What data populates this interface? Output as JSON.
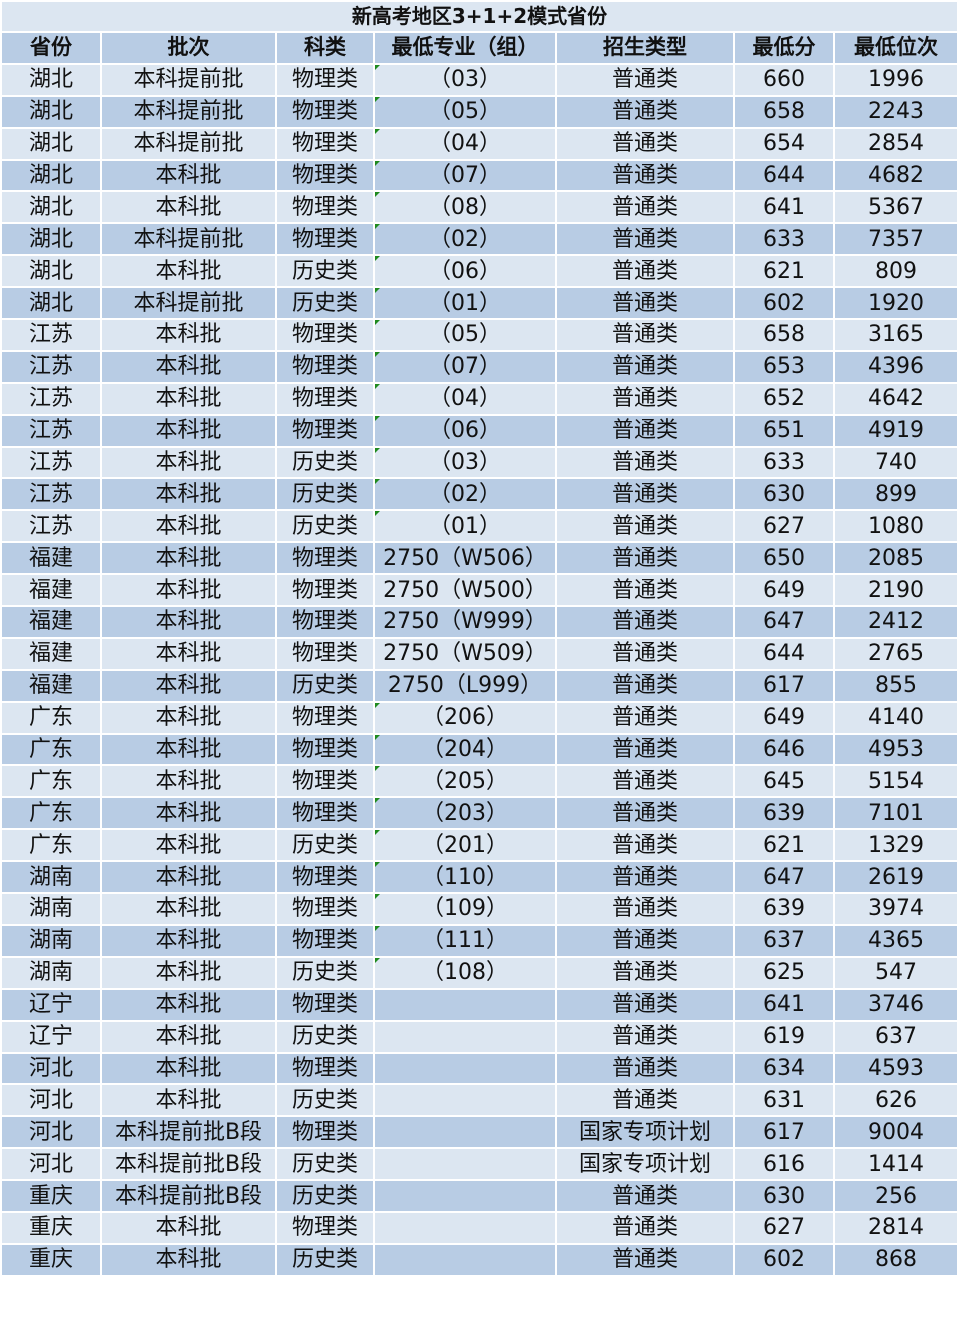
{
  "title": "新高考地区3+1+2模式省份",
  "headers": [
    "省份",
    "批次",
    "科类",
    "最低专业（组）",
    "招生类型",
    "最低分",
    "最低位次"
  ],
  "rows": [
    [
      "湖北",
      "本科提前批",
      "物理类",
      "（03）",
      "普通类",
      "660",
      "1996"
    ],
    [
      "湖北",
      "本科提前批",
      "物理类",
      "（05）",
      "普通类",
      "658",
      "2243"
    ],
    [
      "湖北",
      "本科提前批",
      "物理类",
      "（04）",
      "普通类",
      "654",
      "2854"
    ],
    [
      "湖北",
      "本科批",
      "物理类",
      "（07）",
      "普通类",
      "644",
      "4682"
    ],
    [
      "湖北",
      "本科批",
      "物理类",
      "（08）",
      "普通类",
      "641",
      "5367"
    ],
    [
      "湖北",
      "本科提前批",
      "物理类",
      "（02）",
      "普通类",
      "633",
      "7357"
    ],
    [
      "湖北",
      "本科批",
      "历史类",
      "（06）",
      "普通类",
      "621",
      "809"
    ],
    [
      "湖北",
      "本科提前批",
      "历史类",
      "（01）",
      "普通类",
      "602",
      "1920"
    ],
    [
      "江苏",
      "本科批",
      "物理类",
      "（05）",
      "普通类",
      "658",
      "3165"
    ],
    [
      "江苏",
      "本科批",
      "物理类",
      "（07）",
      "普通类",
      "653",
      "4396"
    ],
    [
      "江苏",
      "本科批",
      "物理类",
      "（04）",
      "普通类",
      "652",
      "4642"
    ],
    [
      "江苏",
      "本科批",
      "物理类",
      "（06）",
      "普通类",
      "651",
      "4919"
    ],
    [
      "江苏",
      "本科批",
      "历史类",
      "（03）",
      "普通类",
      "633",
      "740"
    ],
    [
      "江苏",
      "本科批",
      "历史类",
      "（02）",
      "普通类",
      "630",
      "899"
    ],
    [
      "江苏",
      "本科批",
      "历史类",
      "（01）",
      "普通类",
      "627",
      "1080"
    ],
    [
      "福建",
      "本科批",
      "物理类",
      "2750（W506）",
      "普通类",
      "650",
      "2085"
    ],
    [
      "福建",
      "本科批",
      "物理类",
      "2750（W500）",
      "普通类",
      "649",
      "2190"
    ],
    [
      "福建",
      "本科批",
      "物理类",
      "2750（W999）",
      "普通类",
      "647",
      "2412"
    ],
    [
      "福建",
      "本科批",
      "物理类",
      "2750（W509）",
      "普通类",
      "644",
      "2765"
    ],
    [
      "福建",
      "本科批",
      "历史类",
      "2750（L999）",
      "普通类",
      "617",
      "855"
    ],
    [
      "广东",
      "本科批",
      "物理类",
      "（206）",
      "普通类",
      "649",
      "4140"
    ],
    [
      "广东",
      "本科批",
      "物理类",
      "（204）",
      "普通类",
      "646",
      "4953"
    ],
    [
      "广东",
      "本科批",
      "物理类",
      "（205）",
      "普通类",
      "645",
      "5154"
    ],
    [
      "广东",
      "本科批",
      "物理类",
      "（203）",
      "普通类",
      "639",
      "7101"
    ],
    [
      "广东",
      "本科批",
      "历史类",
      "（201）",
      "普通类",
      "621",
      "1329"
    ],
    [
      "湖南",
      "本科批",
      "物理类",
      "（110）",
      "普通类",
      "647",
      "2619"
    ],
    [
      "湖南",
      "本科批",
      "物理类",
      "（109）",
      "普通类",
      "639",
      "3974"
    ],
    [
      "湖南",
      "本科批",
      "物理类",
      "（111）",
      "普通类",
      "637",
      "4365"
    ],
    [
      "湖南",
      "本科批",
      "历史类",
      "（108）",
      "普通类",
      "625",
      "547"
    ],
    [
      "辽宁",
      "本科批",
      "物理类",
      "",
      "普通类",
      "641",
      "3746"
    ],
    [
      "辽宁",
      "本科批",
      "历史类",
      "",
      "普通类",
      "619",
      "637"
    ],
    [
      "河北",
      "本科批",
      "物理类",
      "",
      "普通类",
      "634",
      "4593"
    ],
    [
      "河北",
      "本科批",
      "历史类",
      "",
      "普通类",
      "631",
      "626"
    ],
    [
      "河北",
      "本科提前批B段",
      "物理类",
      "",
      "国家专项计划",
      "617",
      "9004"
    ],
    [
      "河北",
      "本科提前批B段",
      "历史类",
      "",
      "国家专项计划",
      "616",
      "1414"
    ],
    [
      "重庆",
      "本科提前批B段",
      "历史类",
      "",
      "普通类",
      "630",
      "256"
    ],
    [
      "重庆",
      "本科批",
      "物理类",
      "",
      "普通类",
      "627",
      "2814"
    ],
    [
      "重庆",
      "本科批",
      "历史类",
      "",
      "普通类",
      "602",
      "868"
    ]
  ],
  "colors": {
    "row_light": "#dce6f1",
    "row_dark": "#b8cce4",
    "header": "#b8cce4",
    "marker": "#1f8a1f"
  }
}
